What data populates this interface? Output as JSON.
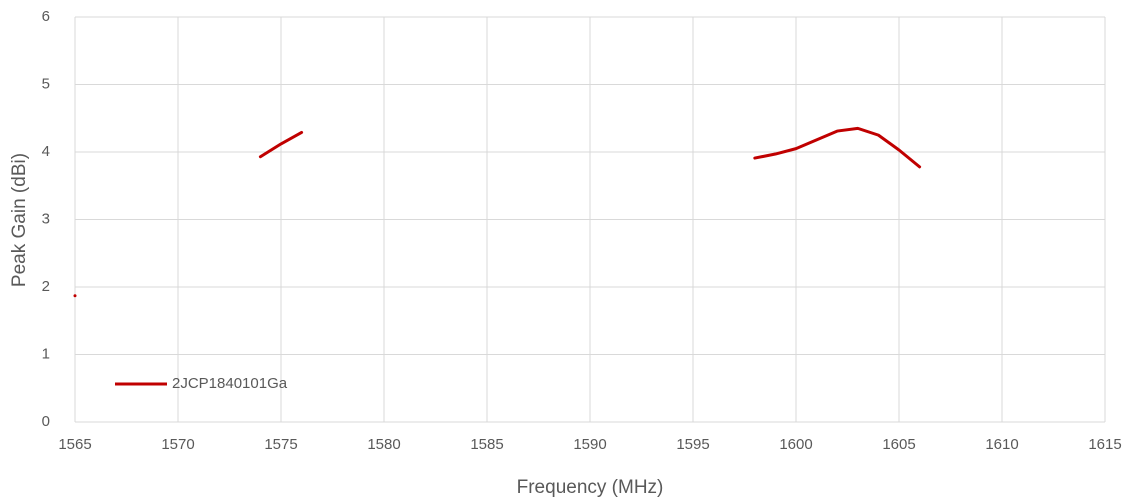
{
  "chart_data": {
    "type": "line",
    "xlabel": "Frequency (MHz)",
    "ylabel": "Peak Gain (dBi)",
    "x": [
      1565,
      1566,
      1574,
      1575,
      1576,
      1577,
      1598,
      1599,
      1600,
      1601,
      1602,
      1603,
      1604,
      1605,
      1606
    ],
    "series": [
      {
        "name": "2JCP1840101Ga",
        "color": "#c00000",
        "values": [
          1.87,
          null,
          3.93,
          4.12,
          4.29,
          null,
          3.91,
          3.97,
          4.05,
          4.18,
          4.31,
          4.35,
          4.25,
          4.03,
          3.78
        ]
      }
    ],
    "xlim": [
      1565,
      1615
    ],
    "xticks": [
      1565,
      1570,
      1575,
      1580,
      1585,
      1590,
      1595,
      1600,
      1605,
      1610,
      1615
    ],
    "ylim": [
      0,
      6
    ],
    "yticks": [
      0,
      1,
      2,
      3,
      4,
      5,
      6
    ],
    "grid": true,
    "legend": "lower left"
  }
}
